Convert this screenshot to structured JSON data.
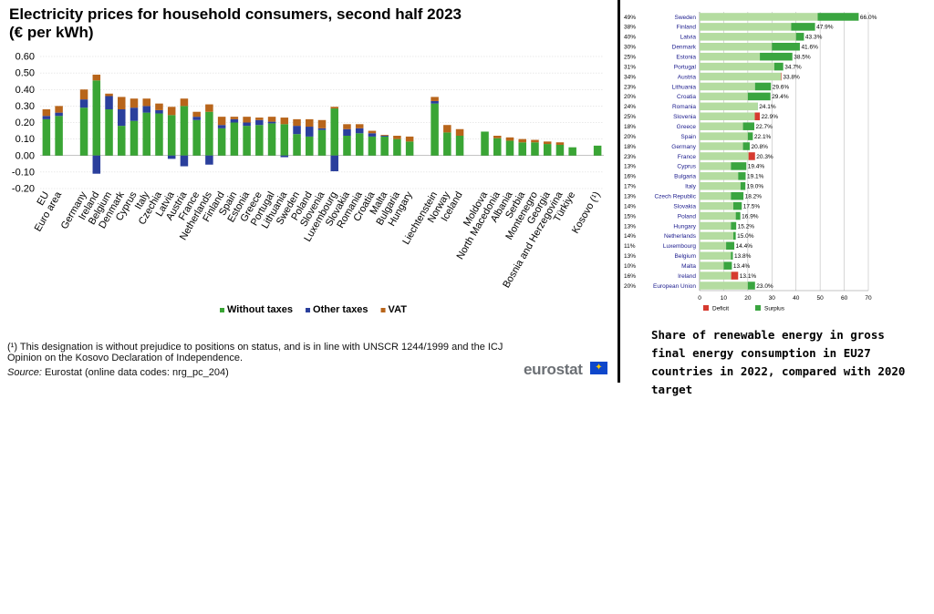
{
  "left": {
    "title_line1": "Electricity prices for household consumers, second half 2023",
    "title_line2": "(€ per kWh)",
    "footnote_line1": "(¹) This designation is without prejudice to positions on status, and is in line with UNSCR 1244/1999 and the ICJ",
    "footnote_line2": "Opinion on the Kosovo Declaration of Independence.",
    "source_label": "Source:",
    "source_text": " Eurostat (online data codes: nrg_pc_204)",
    "logo_text": "eurostat",
    "flag_icon": "eu-flag-icon"
  },
  "right": {
    "caption": "Share of renewable energy in gross final energy consumption in EU27 countries in 2022, compared with 2020 target"
  },
  "colors": {
    "without_taxes": "#3aa535",
    "other_taxes": "#2a3f9c",
    "vat": "#b8651b",
    "surplus_light": "#b4dca0",
    "surplus_dark": "#3aa540",
    "deficit": "#d63a2f"
  },
  "chart_data": [
    {
      "type": "bar",
      "stacked": true,
      "title": "Electricity prices for household consumers, second half 2023",
      "subtitle": "(€ per kWh)",
      "ylim": [
        -0.2,
        0.6
      ],
      "yticks": [
        "0.60",
        "0.50",
        "0.40",
        "0.30",
        "0.20",
        "0.10",
        "0.00",
        "-0.10",
        "-0.20"
      ],
      "ytick_values": [
        0.6,
        0.5,
        0.4,
        0.3,
        0.2,
        0.1,
        0.0,
        -0.1,
        -0.2
      ],
      "grid": true,
      "legend_position": "bottom",
      "categories": [
        "EU",
        "Euro area",
        "",
        "Germany",
        "Ireland",
        "Belgium",
        "Denmark",
        "Cyprus",
        "Italy",
        "Czechia",
        "Latvia",
        "Austria",
        "France",
        "Netherlands",
        "Finland",
        "Spain",
        "Estonia",
        "Greece",
        "Portugal",
        "Lithuania",
        "Sweden",
        "Poland",
        "Slovenia",
        "Luxembourg",
        "Slovakia",
        "Romania",
        "Croatia",
        "Malta",
        "Bulgaria",
        "Hungary",
        "",
        "Liechtenstein",
        "Norway",
        "Iceland",
        "",
        "Moldova",
        "North Macedonia",
        "Albania",
        "Serbia",
        "Montenegro",
        "Georgia",
        "Bosnia and Herzegovina",
        "Türkiye",
        "",
        "Kosovo (¹)"
      ],
      "series": [
        {
          "name": "Without taxes",
          "values": [
            0.22,
            0.24,
            null,
            0.29,
            0.455,
            0.28,
            0.18,
            0.21,
            0.26,
            0.255,
            0.245,
            0.3,
            0.215,
            0.265,
            0.165,
            0.2,
            0.18,
            0.185,
            0.195,
            0.19,
            0.13,
            0.115,
            0.155,
            0.285,
            0.12,
            0.135,
            0.115,
            0.115,
            0.1,
            0.085,
            null,
            0.315,
            0.14,
            0.12,
            null,
            0.145,
            0.105,
            0.09,
            0.08,
            0.08,
            0.07,
            0.065,
            0.05,
            null,
            0.06
          ]
        },
        {
          "name": "Other taxes",
          "values": [
            0.02,
            0.02,
            null,
            0.05,
            -0.11,
            0.08,
            0.1,
            0.08,
            0.04,
            0.02,
            -0.02,
            -0.065,
            0.02,
            -0.055,
            0.02,
            0.02,
            0.02,
            0.03,
            0.01,
            -0.01,
            0.05,
            0.06,
            0.01,
            -0.095,
            0.04,
            0.03,
            0.02,
            0.005,
            0.0,
            0.0,
            null,
            0.015,
            0.0,
            0.0,
            null,
            0.0,
            0.0,
            0.0,
            0.0,
            0.0,
            0.0,
            0.0,
            0.0,
            null,
            0.0
          ]
        },
        {
          "name": "VAT",
          "values": [
            0.04,
            0.04,
            null,
            0.06,
            0.035,
            0.015,
            0.075,
            0.055,
            0.045,
            0.04,
            0.05,
            0.045,
            0.03,
            0.045,
            0.05,
            0.015,
            0.035,
            0.015,
            0.03,
            0.04,
            0.04,
            0.045,
            0.05,
            0.01,
            0.03,
            0.025,
            0.015,
            0.005,
            0.02,
            0.03,
            null,
            0.025,
            0.045,
            0.04,
            null,
            0.0,
            0.015,
            0.02,
            0.02,
            0.015,
            0.015,
            0.015,
            0.0,
            null,
            0.0
          ]
        }
      ]
    },
    {
      "type": "bar",
      "orientation": "horizontal",
      "xlim": [
        0,
        70
      ],
      "xticks": [
        "0",
        "10",
        "20",
        "30",
        "40",
        "50",
        "60",
        "70"
      ],
      "grid": true,
      "legend_position": "bottom",
      "legend": [
        "Deficit",
        "Surplus"
      ],
      "categories": [
        "Sweden",
        "Finland",
        "Latvia",
        "Denmark",
        "Estonia",
        "Portugal",
        "Austria",
        "Lithuania",
        "Croatia",
        "Romania",
        "Slovenia",
        "Greece",
        "Spain",
        "Germany",
        "France",
        "Cyprus",
        "Bulgaria",
        "Italy",
        "Czech Republic",
        "Slovakia",
        "Poland",
        "Hungary",
        "Netherlands",
        "Luxembourg",
        "Belgium",
        "Malta",
        "Ireland",
        "European Union"
      ],
      "targets": [
        "49%",
        "38%",
        "40%",
        "30%",
        "25%",
        "31%",
        "34%",
        "23%",
        "20%",
        "24%",
        "25%",
        "18%",
        "20%",
        "18%",
        "23%",
        "13%",
        "16%",
        "17%",
        "13%",
        "14%",
        "15%",
        "13%",
        "14%",
        "11%",
        "13%",
        "10%",
        "16%",
        "20%"
      ],
      "target_values": [
        49,
        38,
        40,
        30,
        25,
        31,
        34,
        23,
        20,
        24,
        25,
        18,
        20,
        18,
        23,
        13,
        16,
        17,
        13,
        14,
        15,
        13,
        14,
        11,
        13,
        10,
        16,
        20
      ],
      "value_labels": [
        "66.0%",
        "47.9%",
        "43.3%",
        "41.6%",
        "38.5%",
        "34.7%",
        "33.8%",
        "29.6%",
        "29.4%",
        "24.1%",
        "22.9%",
        "22.7%",
        "22.1%",
        "20.8%",
        "20.3%",
        "19.4%",
        "19.1%",
        "19.0%",
        "18.2%",
        "17.5%",
        "16.9%",
        "15.2%",
        "15.0%",
        "14.4%",
        "13.8%",
        "13.4%",
        "13.1%",
        "23.0%"
      ],
      "values": [
        66.0,
        47.9,
        43.3,
        41.6,
        38.5,
        34.7,
        33.8,
        29.6,
        29.4,
        24.1,
        22.9,
        22.7,
        22.1,
        20.8,
        20.3,
        19.4,
        19.1,
        19.0,
        18.2,
        17.5,
        16.9,
        15.2,
        15.0,
        14.4,
        13.8,
        13.4,
        13.1,
        23.0
      ]
    }
  ]
}
